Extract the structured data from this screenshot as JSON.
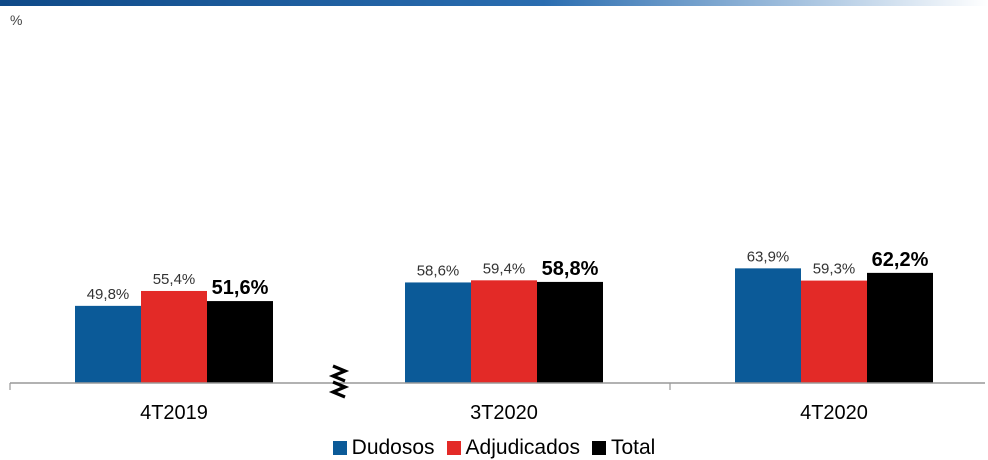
{
  "unit_label": "%",
  "colors": {
    "dudosos": "#0b5a98",
    "adjudicados": "#e32a27",
    "total": "#000000"
  },
  "chart_data": {
    "type": "bar",
    "categories": [
      "4T2019",
      "3T2020",
      "4T2020"
    ],
    "series": [
      {
        "name": "Dudosos",
        "values": [
          49.8,
          58.6,
          63.9
        ],
        "labels": [
          "49,8%",
          "58,6%",
          "63,9%"
        ]
      },
      {
        "name": "Adjudicados",
        "values": [
          55.4,
          59.4,
          59.3
        ],
        "labels": [
          "55,4%",
          "59,4%",
          "59,3%"
        ]
      },
      {
        "name": "Total",
        "values": [
          51.6,
          58.8,
          62.2
        ],
        "labels": [
          "51,6%",
          "58,8%",
          "62,2%"
        ]
      }
    ],
    "axis_break_between": [
      "4T2019",
      "3T2020"
    ],
    "legend_position": "bottom",
    "grid": false
  }
}
